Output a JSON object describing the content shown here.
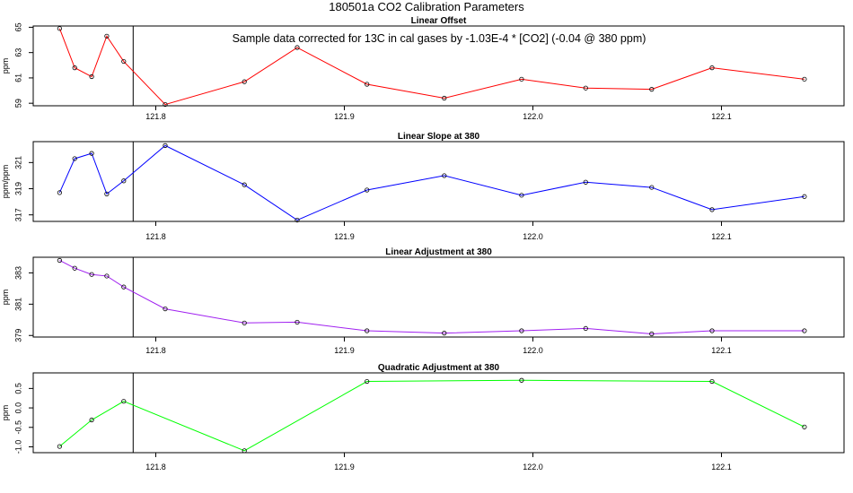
{
  "page": {
    "title": "180501a   CO2 Calibration Parameters"
  },
  "chart_data": [
    {
      "type": "line",
      "title": "Linear Offset",
      "ylabel": "ppm",
      "color": "#ff0000",
      "annotation": "Sample data corrected for 13C in cal gases by -1.03E-4 * [CO2] (-0.04 @ 380 ppm)",
      "xlim": [
        121.735,
        122.165
      ],
      "ylim": [
        58.8,
        65.1
      ],
      "yticks": [
        59,
        61,
        63,
        65
      ],
      "xticks": [
        121.8,
        121.9,
        122.0,
        122.1
      ],
      "xtick_labels": [
        "121.8",
        "121.9",
        "122.0",
        "122.1"
      ],
      "vline_x": 121.788,
      "x": [
        121.749,
        121.757,
        121.766,
        121.774,
        121.783,
        121.805,
        121.847,
        121.875,
        121.912,
        121.953,
        121.994,
        122.028,
        122.063,
        122.095,
        122.144
      ],
      "y": [
        64.9,
        61.8,
        61.1,
        64.3,
        62.3,
        58.9,
        60.7,
        63.4,
        60.5,
        59.4,
        60.9,
        60.2,
        60.1,
        61.8,
        60.9
      ]
    },
    {
      "type": "line",
      "title": "Linear Slope at 380",
      "ylabel": "ppm/ppm",
      "color": "#0000ff",
      "xlim": [
        121.735,
        122.165
      ],
      "ylim": [
        316.5,
        322.6
      ],
      "yticks": [
        317,
        319,
        321
      ],
      "xticks": [
        121.8,
        121.9,
        122.0,
        122.1
      ],
      "xtick_labels": [
        "121.8",
        "121.9",
        "122.0",
        "122.1"
      ],
      "vline_x": 121.788,
      "x": [
        121.749,
        121.757,
        121.766,
        121.774,
        121.783,
        121.805,
        121.847,
        121.875,
        121.912,
        121.953,
        121.994,
        122.028,
        122.063,
        122.095,
        122.144
      ],
      "y": [
        318.7,
        321.3,
        321.7,
        318.6,
        319.6,
        322.3,
        319.3,
        316.6,
        318.9,
        320.0,
        318.5,
        319.5,
        319.1,
        317.4,
        318.4
      ]
    },
    {
      "type": "line",
      "title": "Linear Adjustment at 380",
      "ylabel": "ppm",
      "color": "#a020f0",
      "xlim": [
        121.735,
        122.165
      ],
      "ylim": [
        378.9,
        384.0
      ],
      "yticks": [
        379,
        381,
        383
      ],
      "xticks": [
        121.8,
        121.9,
        122.0,
        122.1
      ],
      "xtick_labels": [
        "121.8",
        "121.9",
        "122.0",
        "122.1"
      ],
      "vline_x": 121.788,
      "x": [
        121.749,
        121.757,
        121.766,
        121.774,
        121.783,
        121.805,
        121.847,
        121.875,
        121.912,
        121.953,
        121.994,
        122.028,
        122.063,
        122.095,
        122.144
      ],
      "y": [
        383.8,
        383.3,
        382.9,
        382.8,
        382.1,
        380.7,
        379.8,
        379.85,
        379.3,
        379.15,
        379.3,
        379.45,
        379.1,
        379.3,
        379.3
      ]
    },
    {
      "type": "line",
      "title": "Quadratic Adjustment at 380",
      "ylabel": "ppm",
      "color": "#00ff00",
      "xlim": [
        121.735,
        122.165
      ],
      "ylim": [
        -1.15,
        0.9
      ],
      "yticks": [
        -1.0,
        -0.5,
        0.0,
        0.5
      ],
      "ytick_labels": [
        "-1.0",
        "-0.5",
        "0.0",
        "0.5"
      ],
      "xticks": [
        121.8,
        121.9,
        122.0,
        122.1
      ],
      "xtick_labels": [
        "121.8",
        "121.9",
        "122.0",
        "122.1"
      ],
      "vline_x": 121.788,
      "x": [
        121.749,
        121.766,
        121.783,
        121.847,
        121.912,
        121.994,
        122.095,
        122.144
      ],
      "y": [
        -0.99,
        -0.31,
        0.17,
        -1.1,
        0.68,
        0.71,
        0.68,
        -0.49
      ]
    }
  ]
}
